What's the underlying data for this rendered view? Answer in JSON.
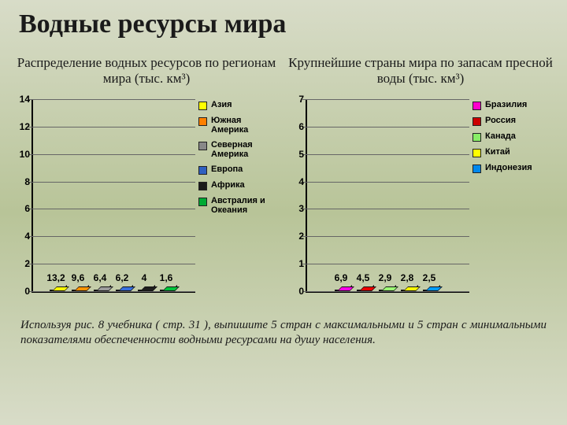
{
  "title": "Водные  ресурсы  мира",
  "left_chart": {
    "subtitle": "Распределение  водных ресурсов  по  регионам  мира  (тыс. км³)",
    "type": "bar",
    "ymax": 14,
    "ystep": 2,
    "bars": [
      {
        "label": "13,2",
        "value": 13.2,
        "color": "#ffff00",
        "name": "Азия"
      },
      {
        "label": "9,6",
        "value": 9.6,
        "color": "#ff8000",
        "name": "Южная Америка"
      },
      {
        "label": "6,4",
        "value": 6.4,
        "color": "#888888",
        "name": "Северная Америка"
      },
      {
        "label": "6,2",
        "value": 6.2,
        "color": "#3060c0",
        "name": "Европа"
      },
      {
        "label": "4",
        "value": 4.0,
        "color": "#1a1a1a",
        "name": "Африка"
      },
      {
        "label": "1,6",
        "value": 1.6,
        "color": "#00aa33",
        "name": "Австралия и Океания"
      }
    ]
  },
  "right_chart": {
    "subtitle": "Крупнейшие страны мира  по запасам\nпресной воды  (тыс. км³)",
    "type": "bar",
    "ymax": 7,
    "ystep": 1,
    "bars": [
      {
        "label": "6,9",
        "value": 6.9,
        "color": "#ff00cc",
        "name": "Бразилия"
      },
      {
        "label": "4,5",
        "value": 4.5,
        "color": "#cc0000",
        "name": "Россия"
      },
      {
        "label": "2,9",
        "value": 2.9,
        "color": "#88ee66",
        "name": "Канада"
      },
      {
        "label": "2,8",
        "value": 2.8,
        "color": "#ffff00",
        "name": "Китай"
      },
      {
        "label": "2,5",
        "value": 2.5,
        "color": "#0088ee",
        "name": "Индонезия"
      }
    ]
  },
  "footer": "Используя  рис.  8  учебника  ( стр.  31 ),  выпишите  5  стран  с максимальными  и  5  стран  с  минимальными  показателями  обеспеченности водными ресурсами на душу населения.",
  "colors": {
    "grid": "#666666",
    "axis": "#000000",
    "text": "#1a1a1a"
  },
  "typography": {
    "title_fontsize": 34,
    "subtitle_fontsize": 17,
    "footer_fontsize": 15,
    "tick_fontsize": 12,
    "legend_fontsize": 11
  }
}
